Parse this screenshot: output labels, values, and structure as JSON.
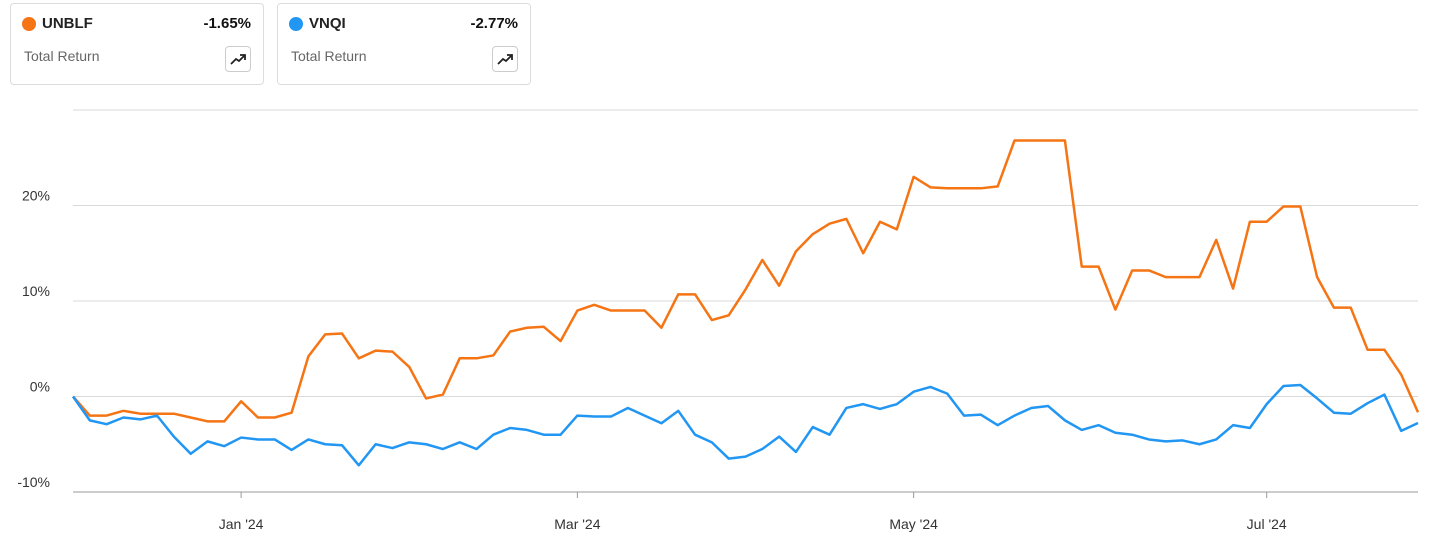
{
  "chart_data": {
    "type": "line",
    "categories": [
      null,
      null,
      null,
      null,
      null,
      null,
      null,
      null,
      null,
      null,
      "Jan '24",
      null,
      null,
      null,
      null,
      null,
      null,
      null,
      null,
      null,
      null,
      null,
      null,
      null,
      null,
      null,
      null,
      null,
      null,
      null,
      "Mar '24",
      null,
      null,
      null,
      null,
      null,
      null,
      null,
      null,
      null,
      null,
      null,
      null,
      null,
      null,
      null,
      null,
      null,
      null,
      null,
      "May '24",
      null,
      null,
      null,
      null,
      null,
      null,
      null,
      null,
      null,
      null,
      null,
      null,
      null,
      null,
      null,
      null,
      null,
      null,
      null,
      null,
      "Jul '24",
      null,
      null,
      null,
      null,
      null,
      null,
      null,
      null,
      null
    ],
    "series": [
      {
        "name": "UNBLF",
        "color": "#f57414",
        "summary_label": "Total Return",
        "summary_value": "-1.65%",
        "values": [
          0,
          -2,
          -2,
          -1.5,
          -1.8,
          -1.8,
          -1.8,
          -2.2,
          -2.6,
          -2.6,
          -0.5,
          -2.2,
          -2.2,
          -1.7,
          4.2,
          6.5,
          6.6,
          4,
          4.8,
          4.7,
          3.1,
          -0.2,
          0.2,
          4,
          4,
          4.3,
          6.8,
          7.2,
          7.3,
          5.8,
          9,
          9.6,
          9,
          9,
          9,
          7.2,
          10.7,
          10.7,
          8,
          8.5,
          11.2,
          14.3,
          11.6,
          15.2,
          17,
          18.1,
          18.6,
          15,
          18.3,
          17.5,
          23,
          21.9,
          21.8,
          21.8,
          21.8,
          22,
          26.8,
          26.8,
          26.8,
          26.8,
          13.6,
          13.6,
          9.1,
          13.2,
          13.2,
          12.5,
          12.5,
          12.5,
          16.4,
          11.3,
          18.3,
          18.3,
          19.9,
          19.9,
          12.5,
          9.3,
          9.3,
          4.9,
          4.9,
          2.3,
          -1.65
        ]
      },
      {
        "name": "VNQI",
        "color": "#2196f3",
        "summary_label": "Total Return",
        "summary_value": "-2.77%",
        "values": [
          0,
          -2.5,
          -2.9,
          -2.2,
          -2.4,
          -2,
          -4.2,
          -6,
          -4.7,
          -5.2,
          -4.3,
          -4.5,
          -4.5,
          -5.6,
          -4.5,
          -5,
          -5.1,
          -7.2,
          -5,
          -5.4,
          -4.8,
          -5,
          -5.5,
          -4.8,
          -5.5,
          -4,
          -3.3,
          -3.5,
          -4,
          -4,
          -2,
          -2.1,
          -2.1,
          -1.2,
          -2,
          -2.8,
          -1.5,
          -4,
          -4.8,
          -6.5,
          -6.3,
          -5.5,
          -4.2,
          -5.8,
          -3.2,
          -4,
          -1.2,
          -0.8,
          -1.3,
          -0.8,
          0.5,
          1,
          0.3,
          -2,
          -1.9,
          -3,
          -2,
          -1.2,
          -1,
          -2.5,
          -3.5,
          -3,
          -3.8,
          -4,
          -4.5,
          -4.7,
          -4.6,
          -5,
          -4.5,
          -3,
          -3.3,
          -0.8,
          1.1,
          1.2,
          -0.2,
          -1.7,
          -1.8,
          -0.7,
          0.2,
          -3.6,
          -2.77
        ]
      }
    ],
    "ylim": [
      -10,
      30
    ],
    "yticks": [
      {
        "value": -10,
        "label": "-10%"
      },
      {
        "value": 0,
        "label": "0%"
      },
      {
        "value": 10,
        "label": "10%"
      },
      {
        "value": 20,
        "label": "20%"
      }
    ],
    "grid": true
  }
}
